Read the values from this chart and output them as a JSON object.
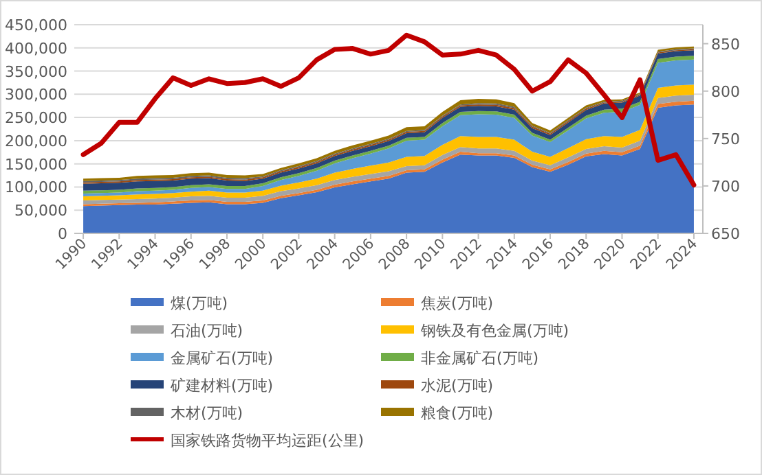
{
  "chart_data": {
    "type": "area",
    "stacked": true,
    "legend": "bottom",
    "grid": "y",
    "x": [
      1990,
      1991,
      1992,
      1993,
      1994,
      1995,
      1996,
      1997,
      1998,
      1999,
      2000,
      2001,
      2002,
      2003,
      2004,
      2005,
      2006,
      2007,
      2008,
      2009,
      2010,
      2011,
      2012,
      2013,
      2014,
      2015,
      2016,
      2017,
      2018,
      2019,
      2020,
      2021,
      2022,
      2023,
      2024
    ],
    "xlim": [
      1989.5,
      2024.5
    ],
    "xticks": [
      1990,
      1992,
      1994,
      1996,
      1998,
      2000,
      2002,
      2004,
      2006,
      2008,
      2010,
      2012,
      2014,
      2016,
      2018,
      2020,
      2022,
      2024
    ],
    "ylim": [
      0,
      450000
    ],
    "yticks": [
      0,
      {
        "value": 50000,
        "label": "50,000"
      },
      {
        "value": 100000,
        "label": "100,000"
      },
      {
        "value": 150000,
        "label": "150,000"
      },
      {
        "value": 200000,
        "label": "200,000"
      },
      {
        "value": 250000,
        "label": "250,000"
      },
      {
        "value": 300000,
        "label": "300,000"
      },
      {
        "value": 350000,
        "label": "350,000"
      },
      {
        "value": 400000,
        "label": "400,000"
      },
      {
        "value": 450000,
        "label": "450,000"
      }
    ],
    "y2lim": [
      650,
      870
    ],
    "y2ticks": [
      650,
      700,
      750,
      800,
      850
    ],
    "series": [
      {
        "name": "煤(万吨)",
        "color": "#4472c4",
        "values": [
          59000,
          60000,
          61000,
          62000,
          62000,
          64000,
          66000,
          67000,
          63000,
          63000,
          66000,
          76000,
          82000,
          89000,
          99000,
          106000,
          112000,
          118000,
          131000,
          133000,
          153000,
          170000,
          168000,
          168000,
          163000,
          143000,
          133000,
          148000,
          166000,
          171000,
          168000,
          182000,
          271000,
          276000,
          278000
        ]
      },
      {
        "name": "焦炭(万吨)",
        "color": "#ed7d31",
        "values": [
          4000,
          4000,
          4000,
          4000,
          5000,
          5000,
          5000,
          5000,
          5000,
          5000,
          5000,
          5000,
          5000,
          5000,
          6000,
          6000,
          6000,
          6000,
          5000,
          5000,
          6000,
          6000,
          5000,
          5000,
          5000,
          5000,
          5000,
          6000,
          6000,
          7000,
          7000,
          7000,
          8000,
          8000,
          8000
        ]
      },
      {
        "name": "石油(万吨)",
        "color": "#a5a5a5",
        "values": [
          8000,
          8000,
          8000,
          8000,
          8000,
          8000,
          9000,
          9000,
          9000,
          9000,
          10000,
          10000,
          10000,
          10000,
          10000,
          10000,
          10000,
          10000,
          9000,
          9000,
          10000,
          10000,
          10000,
          10000,
          10000,
          9000,
          9000,
          10000,
          10000,
          10000,
          10000,
          11000,
          13000,
          13000,
          13000
        ]
      },
      {
        "name": "钢铁及有色金属(万吨)",
        "color": "#ffc000",
        "values": [
          9000,
          9000,
          9000,
          10000,
          10000,
          10000,
          10000,
          11000,
          11000,
          11000,
          11000,
          12000,
          13000,
          14000,
          16000,
          17000,
          18000,
          19000,
          20000,
          20000,
          22000,
          24000,
          25000,
          25000,
          24000,
          19000,
          18000,
          20000,
          21000,
          22000,
          23000,
          23000,
          22000,
          22000,
          22000
        ]
      },
      {
        "name": "金属矿石(万吨)",
        "color": "#5b9bd5",
        "values": [
          6000,
          6000,
          6000,
          7000,
          7000,
          7000,
          8000,
          8000,
          8000,
          8000,
          10000,
          12000,
          14000,
          17000,
          20000,
          23000,
          26000,
          30000,
          35000,
          35000,
          40000,
          45000,
          49000,
          48000,
          47000,
          35000,
          32000,
          38000,
          45000,
          50000,
          54000,
          54000,
          54000,
          54000,
          54000
        ]
      },
      {
        "name": "非金属矿石(万吨)",
        "color": "#70ad47",
        "values": [
          6000,
          6000,
          6000,
          6000,
          6000,
          6000,
          6000,
          6000,
          6000,
          6000,
          6000,
          6000,
          6000,
          6000,
          6000,
          6000,
          6000,
          6000,
          6000,
          6000,
          7000,
          7000,
          7000,
          7000,
          7000,
          6000,
          5000,
          6000,
          6000,
          7000,
          7000,
          7000,
          8000,
          8000,
          8000
        ]
      },
      {
        "name": "矿建材料(万吨)",
        "color": "#264478",
        "values": [
          15000,
          15000,
          15000,
          15000,
          15000,
          14000,
          14000,
          13000,
          12000,
          11000,
          10000,
          10000,
          10000,
          10000,
          10000,
          10000,
          10000,
          10000,
          10000,
          10000,
          11000,
          11000,
          11000,
          11000,
          11000,
          10000,
          10000,
          11000,
          12000,
          13000,
          13000,
          13000,
          12000,
          12000,
          12000
        ]
      },
      {
        "name": "水泥(万吨)",
        "color": "#9e480e",
        "values": [
          3000,
          3000,
          3000,
          3000,
          3000,
          3000,
          3000,
          3000,
          3000,
          3000,
          3000,
          3000,
          3000,
          3000,
          3000,
          3000,
          3000,
          3000,
          3000,
          3000,
          3000,
          3000,
          3000,
          3000,
          3000,
          3000,
          3000,
          3000,
          3000,
          2000,
          2000,
          2000,
          2000,
          2000,
          2000
        ]
      },
      {
        "name": "木材(万吨)",
        "color": "#636363",
        "values": [
          3000,
          3000,
          3000,
          3000,
          3000,
          3000,
          3000,
          3000,
          3000,
          3000,
          2000,
          2000,
          2000,
          2000,
          2000,
          2000,
          2000,
          2000,
          2000,
          2000,
          2000,
          2000,
          3000,
          3000,
          3000,
          2000,
          2000,
          2000,
          2000,
          2000,
          2000,
          2000,
          2000,
          2000,
          2000
        ]
      },
      {
        "name": "粮食(万吨)",
        "color": "#997300",
        "values": [
          5000,
          5000,
          5000,
          6000,
          6000,
          6000,
          6000,
          6000,
          6000,
          6000,
          5000,
          5000,
          6000,
          6000,
          6000,
          7000,
          7000,
          7000,
          8000,
          8000,
          8000,
          9000,
          9000,
          9000,
          8000,
          6000,
          5000,
          5000,
          5000,
          4000,
          3000,
          3000,
          4000,
          4000,
          4000
        ]
      },
      {
        "name": "国家铁路货物平均运距(公里)",
        "type": "line",
        "axis": "y2",
        "color": "#c00000",
        "values": [
          733,
          745,
          767,
          767,
          792,
          814,
          806,
          813,
          808,
          809,
          813,
          805,
          814,
          833,
          844,
          845,
          839,
          843,
          859,
          852,
          838,
          839,
          843,
          838,
          823,
          800,
          810,
          833,
          819,
          796,
          772,
          812,
          727,
          733,
          701
        ]
      }
    ]
  }
}
